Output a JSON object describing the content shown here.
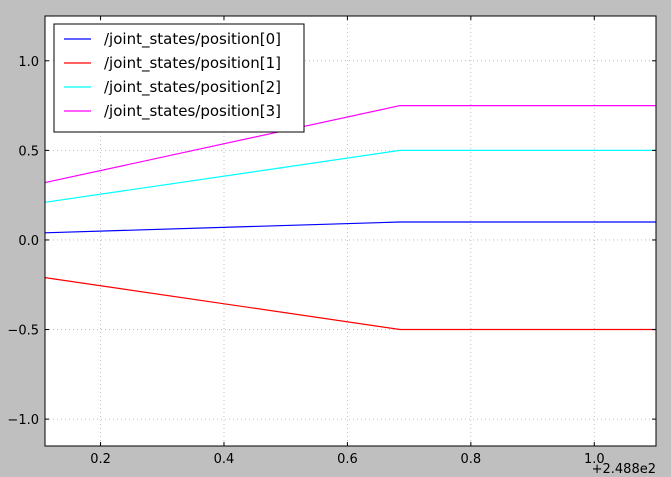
{
  "chart_data": {
    "type": "line",
    "title": "",
    "xlabel": "",
    "ylabel": "",
    "x_offset_label": "+2.488e2",
    "xlim": [
      0.11,
      1.1
    ],
    "ylim": [
      -1.15,
      1.25
    ],
    "xticks": [
      0.2,
      0.4,
      0.6,
      0.8,
      1.0
    ],
    "xtick_labels": [
      "0.2",
      "0.4",
      "0.6",
      "0.8",
      "1.0"
    ],
    "yticks": [
      -1.0,
      -0.5,
      0.0,
      0.5,
      1.0
    ],
    "ytick_labels": [
      "−1.0",
      "−0.5",
      "0.0",
      "0.5",
      "1.0"
    ],
    "grid": true,
    "legend_position": "top-left",
    "series": [
      {
        "name": "/joint_states/position[0]",
        "color": "#0000ff",
        "x": [
          0.11,
          0.685,
          1.1
        ],
        "y": [
          0.04,
          0.1,
          0.1
        ]
      },
      {
        "name": "/joint_states/position[1]",
        "color": "#ff0000",
        "x": [
          0.11,
          0.685,
          1.1
        ],
        "y": [
          -0.21,
          -0.5,
          -0.5
        ]
      },
      {
        "name": "/joint_states/position[2]",
        "color": "#00ffff",
        "x": [
          0.11,
          0.685,
          1.1
        ],
        "y": [
          0.21,
          0.5,
          0.5
        ]
      },
      {
        "name": "/joint_states/position[3]",
        "color": "#ff00ff",
        "x": [
          0.11,
          0.685,
          1.1
        ],
        "y": [
          0.32,
          0.75,
          0.75
        ]
      }
    ]
  }
}
